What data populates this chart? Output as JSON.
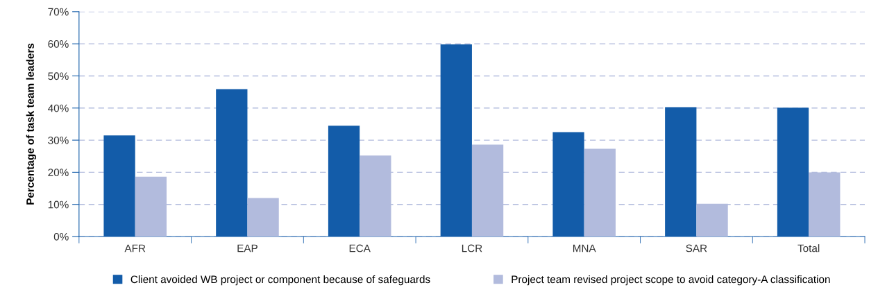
{
  "chart_data": {
    "type": "bar",
    "ylabel": "Percentage of task team leaders",
    "categories": [
      "AFR",
      "EAP",
      "ECA",
      "LCR",
      "MNA",
      "SAR",
      "Total"
    ],
    "series": [
      {
        "name": "Client avoided WB project or component because of safeguards",
        "color": "#135ca9",
        "values": [
          31.5,
          45.9,
          34.5,
          59.8,
          32.5,
          40.3,
          40.1
        ]
      },
      {
        "name": "Project team revised project scope to avoid category-A classification",
        "color": "#b2bbdd",
        "values": [
          18.6,
          12.0,
          25.2,
          28.6,
          27.3,
          10.2,
          20.0
        ]
      }
    ],
    "ylim": [
      0,
      70
    ],
    "yticks": [
      {
        "value": 0,
        "label": "0%"
      },
      {
        "value": 10,
        "label": "10%"
      },
      {
        "value": 20,
        "label": "20%"
      },
      {
        "value": 30,
        "label": "30%"
      },
      {
        "value": 40,
        "label": "40%"
      },
      {
        "value": 50,
        "label": "50%"
      },
      {
        "value": 60,
        "label": "60%"
      },
      {
        "value": 70,
        "label": "70%"
      }
    ],
    "grid": "y",
    "legend": "bottom"
  }
}
